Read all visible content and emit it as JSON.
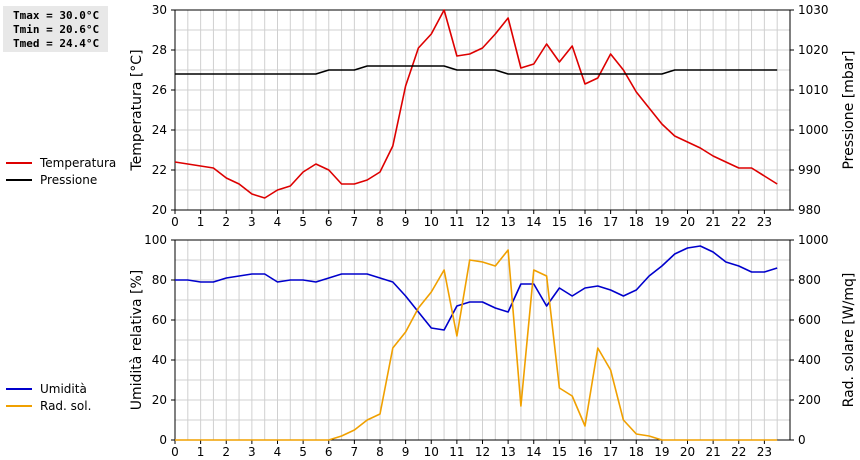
{
  "stats": {
    "tmax": "Tmax = 30.0°C",
    "tmin": "Tmin = 20.6°C",
    "tmed": "Tmed = 24.4°C"
  },
  "colors": {
    "temperatura": "#dd0000",
    "pressione": "#000000",
    "umidita": "#0000cc",
    "rad_sol": "#f0a000",
    "grid": "#d0d0d0"
  },
  "chart_data": [
    {
      "type": "line",
      "x_ticks": [
        0,
        1,
        2,
        3,
        4,
        5,
        6,
        7,
        8,
        9,
        10,
        11,
        12,
        13,
        14,
        15,
        16,
        17,
        18,
        19,
        20,
        21,
        22,
        23
      ],
      "xlim": [
        0,
        24
      ],
      "ylabel_left": "Temperatura [°C]",
      "ylabel_right": "Pressione [mbar]",
      "ylim_left": [
        20,
        30
      ],
      "ylim_right": [
        980,
        1030
      ],
      "yticks_left": [
        20,
        22,
        24,
        26,
        28,
        30
      ],
      "yticks_right": [
        980,
        990,
        1000,
        1010,
        1020,
        1030
      ],
      "legend": [
        "Temperatura",
        "Pressione"
      ],
      "series": [
        {
          "name": "Temperatura",
          "axis": "left",
          "x": [
            0,
            0.5,
            1,
            1.5,
            2,
            2.5,
            3,
            3.5,
            4,
            4.5,
            5,
            5.5,
            6,
            6.5,
            7,
            7.5,
            8,
            8.5,
            9,
            9.5,
            10,
            10.5,
            11,
            11.5,
            12,
            12.5,
            13,
            13.5,
            14,
            14.5,
            15,
            15.5,
            16,
            16.5,
            17,
            17.5,
            18,
            18.5,
            19,
            19.5,
            20,
            20.5,
            21,
            21.5,
            22,
            22.5,
            23,
            23.5
          ],
          "values": [
            22.4,
            22.3,
            22.2,
            22.1,
            21.6,
            21.3,
            20.8,
            20.6,
            21.0,
            21.2,
            21.9,
            22.3,
            22.0,
            21.3,
            21.3,
            21.5,
            21.9,
            23.2,
            26.2,
            28.1,
            28.8,
            30.0,
            27.7,
            27.8,
            28.1,
            28.8,
            29.6,
            27.1,
            27.3,
            28.3,
            27.4,
            28.2,
            26.3,
            26.6,
            27.8,
            27.0,
            25.9,
            25.1,
            24.3,
            23.7,
            23.4,
            23.1,
            22.7,
            22.4,
            22.1,
            22.1,
            21.7,
            21.3
          ]
        },
        {
          "name": "Pressione",
          "axis": "right",
          "x": [
            0,
            0.5,
            1,
            1.5,
            2,
            2.5,
            3,
            3.5,
            4,
            4.5,
            5,
            5.5,
            6,
            6.5,
            7,
            7.5,
            8,
            8.5,
            9,
            9.5,
            10,
            10.5,
            11,
            11.5,
            12,
            12.5,
            13,
            13.5,
            14,
            14.5,
            15,
            15.5,
            16,
            16.5,
            17,
            17.5,
            18,
            18.5,
            19,
            19.5,
            20,
            20.5,
            21,
            21.5,
            22,
            22.5,
            23,
            23.5
          ],
          "values": [
            1014,
            1014,
            1014,
            1014,
            1014,
            1014,
            1014,
            1014,
            1014,
            1014,
            1014,
            1014,
            1015,
            1015,
            1015,
            1016,
            1016,
            1016,
            1016,
            1016,
            1016,
            1016,
            1015,
            1015,
            1015,
            1015,
            1014,
            1014,
            1014,
            1014,
            1014,
            1014,
            1014,
            1014,
            1014,
            1014,
            1014,
            1014,
            1014,
            1015,
            1015,
            1015,
            1015,
            1015,
            1015,
            1015,
            1015,
            1015
          ]
        }
      ]
    },
    {
      "type": "line",
      "x_ticks": [
        0,
        1,
        2,
        3,
        4,
        5,
        6,
        7,
        8,
        9,
        10,
        11,
        12,
        13,
        14,
        15,
        16,
        17,
        18,
        19,
        20,
        21,
        22,
        23
      ],
      "xlim": [
        0,
        24
      ],
      "ylabel_left": "Umidità relativa [%]",
      "ylabel_right": "Rad. solare [W/mq]",
      "ylim_left": [
        0,
        100
      ],
      "ylim_right": [
        0,
        1000
      ],
      "yticks_left": [
        0,
        20,
        40,
        60,
        80,
        100
      ],
      "yticks_right": [
        0,
        200,
        400,
        600,
        800,
        1000
      ],
      "legend": [
        "Umidità",
        "Rad. sol."
      ],
      "series": [
        {
          "name": "Umidità",
          "axis": "left",
          "x": [
            0,
            0.5,
            1,
            1.5,
            2,
            2.5,
            3,
            3.5,
            4,
            4.5,
            5,
            5.5,
            6,
            6.5,
            7,
            7.5,
            8,
            8.5,
            9,
            9.5,
            10,
            10.5,
            11,
            11.5,
            12,
            12.5,
            13,
            13.5,
            14,
            14.5,
            15,
            15.5,
            16,
            16.5,
            17,
            17.5,
            18,
            18.5,
            19,
            19.5,
            20,
            20.5,
            21,
            21.5,
            22,
            22.5,
            23,
            23.5
          ],
          "values": [
            80,
            80,
            79,
            79,
            81,
            82,
            83,
            83,
            79,
            80,
            80,
            79,
            81,
            83,
            83,
            83,
            81,
            79,
            72,
            64,
            56,
            55,
            67,
            69,
            69,
            66,
            64,
            78,
            78,
            67,
            76,
            72,
            76,
            77,
            75,
            72,
            75,
            82,
            87,
            93,
            96,
            97,
            94,
            89,
            87,
            84,
            84,
            86
          ]
        },
        {
          "name": "Rad. sol.",
          "axis": "right",
          "x": [
            0,
            0.5,
            1,
            1.5,
            2,
            2.5,
            3,
            3.5,
            4,
            4.5,
            5,
            5.5,
            6,
            6.5,
            7,
            7.5,
            8,
            8.5,
            9,
            9.5,
            10,
            10.5,
            11,
            11.5,
            12,
            12.5,
            13,
            13.5,
            14,
            14.5,
            15,
            15.5,
            16,
            16.5,
            17,
            17.5,
            18,
            18.5,
            19,
            19.5,
            20,
            20.5,
            21,
            21.5,
            22,
            22.5,
            23,
            23.5
          ],
          "values": [
            0,
            0,
            0,
            0,
            0,
            0,
            0,
            0,
            0,
            0,
            0,
            0,
            0,
            20,
            50,
            100,
            130,
            460,
            540,
            660,
            740,
            850,
            520,
            900,
            890,
            870,
            950,
            170,
            850,
            820,
            260,
            220,
            70,
            460,
            350,
            100,
            30,
            20,
            0,
            0,
            0,
            0,
            0,
            0,
            0,
            0,
            0,
            0
          ]
        }
      ]
    }
  ]
}
